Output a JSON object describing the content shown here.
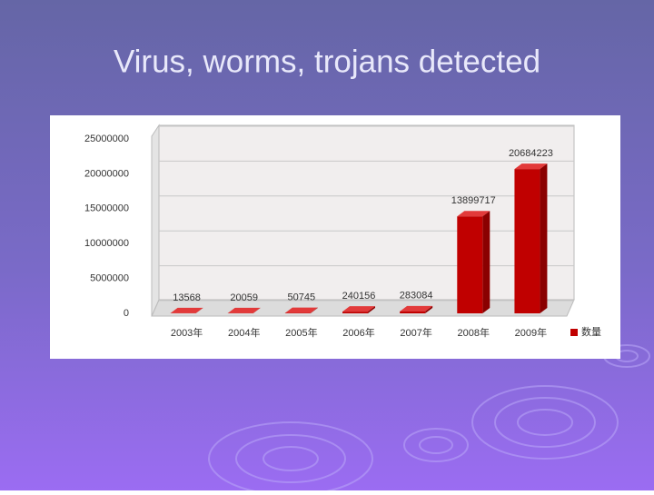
{
  "title": "Virus, worms, trojans detected",
  "chart_data": {
    "type": "bar3d",
    "categories": [
      "2003年",
      "2004年",
      "2005年",
      "2006年",
      "2007年",
      "2008年",
      "2009年"
    ],
    "series": [
      {
        "name": "数量",
        "color": "#c00000",
        "values": [
          13568,
          20059,
          50745,
          240156,
          283084,
          13899717,
          20684223
        ]
      }
    ],
    "ylim": [
      0,
      25000000
    ],
    "yticks": [
      0,
      5000000,
      10000000,
      15000000,
      20000000,
      25000000
    ],
    "grid": true,
    "legend": "right"
  }
}
